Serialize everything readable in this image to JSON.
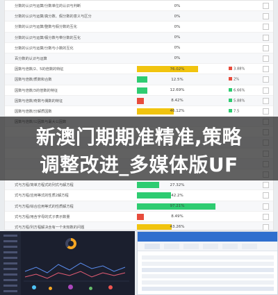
{
  "report": {
    "rows": [
      {
        "label": "分数的认识与运算/分数单位的认识与判断",
        "percent": "0%",
        "fill": 0,
        "color": "#2ecc71",
        "mark": "",
        "mark_color": "none"
      },
      {
        "label": "分数的认识与运算/真分数、假分数的意义与区分",
        "percent": "0%",
        "fill": 0,
        "color": "#2ecc71",
        "mark": "",
        "mark_color": "none"
      },
      {
        "label": "分数的认识与运算/整数与假分数的互化",
        "percent": "0%",
        "fill": 0,
        "color": "#2ecc71",
        "mark": "",
        "mark_color": "none"
      },
      {
        "label": "分数的认识与运算/假分数与带分数的互化",
        "percent": "0%",
        "fill": 0,
        "color": "#2ecc71",
        "mark": "",
        "mark_color": "none"
      },
      {
        "label": "分数的认识与运算/分数与小数的互化",
        "percent": "0%",
        "fill": 0,
        "color": "#2ecc71",
        "mark": "",
        "mark_color": "none"
      },
      {
        "label": "百分数的认识与运算",
        "percent": "0%",
        "fill": 0,
        "color": "#2ecc71",
        "mark": "",
        "mark_color": "none"
      },
      {
        "label": "因数与倍数/2、5的倍数的特征",
        "percent": "76.02%",
        "fill": 0.7602,
        "color": "#f1c40f",
        "mark": "3.88%",
        "mark_color": "red"
      },
      {
        "label": "因数与倍数/质数和合数",
        "percent": "12.5%",
        "fill": 0.125,
        "color": "#2ecc71",
        "mark": "2%",
        "mark_color": "red"
      },
      {
        "label": "因数与倍数/3的倍数的特征",
        "percent": "12.69%",
        "fill": 0.1269,
        "color": "#2ecc71",
        "mark": "6.66%",
        "mark_color": "green"
      },
      {
        "label": "因数与倍数/奇数与偶数的特征",
        "percent": "8.42%",
        "fill": 0.0842,
        "color": "#e74c3c",
        "mark": "5.88%",
        "mark_color": "green"
      },
      {
        "label": "因数与倍数/分解质因数",
        "percent": "46.12%",
        "fill": 0.4612,
        "color": "#f1c40f",
        "mark": "7.5",
        "mark_color": "green"
      },
      {
        "label": "因数与倍数/公因数与最大公因数",
        "percent": "",
        "fill": 0,
        "color": "#2ecc71",
        "mark": "",
        "mark_color": "none"
      },
      {
        "label": "",
        "percent": "",
        "fill": 0,
        "color": "#2ecc71",
        "mark": "",
        "mark_color": "none"
      },
      {
        "label": "",
        "percent": "",
        "fill": 0,
        "color": "#2ecc71",
        "mark": "",
        "mark_color": "none"
      },
      {
        "label": "",
        "percent": "",
        "fill": 0,
        "color": "#2ecc71",
        "mark": "",
        "mark_color": "none"
      },
      {
        "label": "",
        "percent": "",
        "fill": 0,
        "color": "#2ecc71",
        "mark": "",
        "mark_color": "none"
      },
      {
        "label": "",
        "percent": "",
        "fill": 0,
        "color": "#2ecc71",
        "mark": "",
        "mark_color": "none"
      },
      {
        "label": "式与方程/简单方程式的列式与解方程",
        "percent": "27.32%",
        "fill": 0.2732,
        "color": "#2ecc71",
        "mark": "",
        "mark_color": "none"
      },
      {
        "label": "式与方程/应用等式的性质2解方程",
        "percent": "42.2%",
        "fill": 0.422,
        "color": "#2ecc71",
        "mark": "",
        "mark_color": "none"
      },
      {
        "label": "式与方程/综合应用等式的性质解方程",
        "percent": "97.21%",
        "fill": 0.9721,
        "color": "#2ecc71",
        "mark": "",
        "mark_color": "none"
      },
      {
        "label": "式与方程/用含字母的式子表示数量",
        "percent": "8.49%",
        "fill": 0.0849,
        "color": "#e74c3c",
        "mark": "",
        "mark_color": "none"
      },
      {
        "label": "式与方程/列方程解决含有一个未知数的问题",
        "percent": "43.26%",
        "fill": 0.4326,
        "color": "#f1c40f",
        "mark": "",
        "mark_color": "none"
      }
    ]
  },
  "headline": {
    "line1": "新澳门期期准精准,策略",
    "line2": "调整改进_多媒体版UF"
  },
  "colors": {
    "overlay": "#1e1e1e",
    "app_accent": "#2f6fce",
    "dash_bg": "#1b1f2e"
  }
}
